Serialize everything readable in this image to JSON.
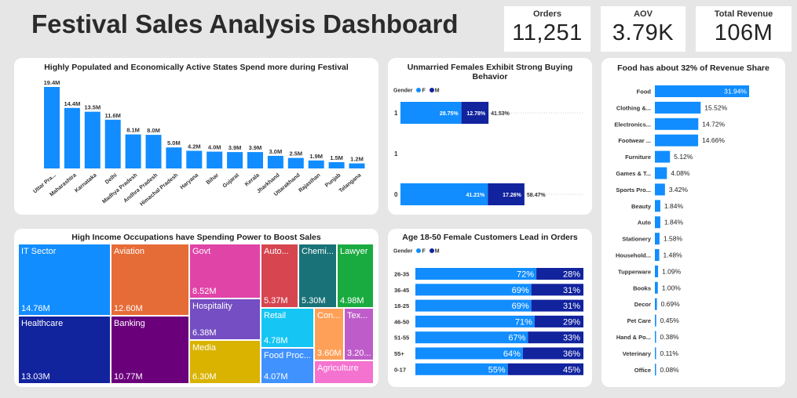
{
  "header": {
    "title": "Festival Sales Analysis Dashboard"
  },
  "kpis": [
    {
      "label": "Orders",
      "value": "11,251"
    },
    {
      "label": "AOV",
      "value": "3.79K"
    },
    {
      "label": "Total Revenue",
      "value": "106M"
    }
  ],
  "colors": {
    "primary": "#118dff",
    "secondary": "#12239e"
  },
  "chart_data": [
    {
      "type": "bar",
      "title": "Highly Populated and Economically Active States Spend more during Festival",
      "categories": [
        "Uttar Pra...",
        "Maharashtra",
        "Karnataka",
        "Delhi",
        "Madhya Pradesh",
        "Andhra Pradesh",
        "Himachal Pradesh",
        "Haryana",
        "Bihar",
        "Gujarat",
        "Kerala",
        "Jharkhand",
        "Uttarakhand",
        "Rajasthan",
        "Punjab",
        "Telangana"
      ],
      "values": [
        19.4,
        14.4,
        13.5,
        11.6,
        8.1,
        8.0,
        5.0,
        4.2,
        4.0,
        3.9,
        3.9,
        3.0,
        2.5,
        1.9,
        1.5,
        1.2
      ],
      "labels": [
        "19.4M",
        "14.4M",
        "13.5M",
        "11.6M",
        "8.1M",
        "8.0M",
        "5.0M",
        "4.2M",
        "4.0M",
        "3.9M",
        "3.9M",
        "3.0M",
        "2.5M",
        "1.9M",
        "1.5M",
        "1.2M"
      ]
    },
    {
      "type": "bar",
      "title": "Unmarried Females Exhibit Strong Buying Behavior",
      "legend_title": "Gender",
      "legend": [
        "F",
        "M"
      ],
      "categories": [
        "1",
        "1",
        "0"
      ],
      "series": [
        {
          "name": "F",
          "values": [
            28.75,
            null,
            41.21
          ],
          "labels": [
            "28.75%",
            "",
            "41.21%"
          ]
        },
        {
          "name": "M",
          "values": [
            12.78,
            null,
            17.26
          ],
          "labels": [
            "12.78%",
            "",
            "17.26%"
          ]
        }
      ],
      "totals": [
        "41.53%",
        "",
        "58.47%"
      ]
    },
    {
      "type": "table",
      "title": "High Income Occupations have Spending Power to Boost Sales",
      "items": [
        {
          "name": "IT Sector",
          "value": "14.76M",
          "color": "#118dff"
        },
        {
          "name": "Healthcare",
          "value": "13.03M",
          "color": "#12239e"
        },
        {
          "name": "Aviation",
          "value": "12.60M",
          "color": "#e66c37"
        },
        {
          "name": "Banking",
          "value": "10.77M",
          "color": "#6b007b"
        },
        {
          "name": "Govt",
          "value": "8.52M",
          "color": "#e044a7"
        },
        {
          "name": "Hospitality",
          "value": "6.38M",
          "color": "#744ec2"
        },
        {
          "name": "Media",
          "value": "6.30M",
          "color": "#d9b300"
        },
        {
          "name": "Auto...",
          "value": "5.37M",
          "color": "#d64550"
        },
        {
          "name": "Chemi...",
          "value": "5.30M",
          "color": "#197278"
        },
        {
          "name": "Lawyer",
          "value": "4.98M",
          "color": "#1aab40"
        },
        {
          "name": "Retail",
          "value": "4.78M",
          "color": "#15c6f4"
        },
        {
          "name": "Food Proc...",
          "value": "4.07M",
          "color": "#4092ff"
        },
        {
          "name": "Con...",
          "value": "3.60M",
          "color": "#ffa058"
        },
        {
          "name": "Tex...",
          "value": "3.20...",
          "color": "#be5dc9"
        },
        {
          "name": "Agriculture",
          "value": "",
          "color": "#f472d0"
        }
      ]
    },
    {
      "type": "bar",
      "title": "Age 18-50 Female Customers Lead in Orders",
      "legend_title": "Gender",
      "legend": [
        "F",
        "M"
      ],
      "categories": [
        "26-35",
        "36-45",
        "18-25",
        "46-50",
        "51-55",
        "55+",
        "0-17"
      ],
      "series": [
        {
          "name": "F",
          "values": [
            72,
            69,
            69,
            71,
            67,
            64,
            55
          ]
        },
        {
          "name": "M",
          "values": [
            28,
            31,
            31,
            29,
            33,
            36,
            45
          ]
        }
      ]
    },
    {
      "type": "bar",
      "title": "Food has about 32% of Revenue Share",
      "categories": [
        "Food",
        "Clothing &...",
        "Electronics...",
        "Footwear ...",
        "Furniture",
        "Games & T...",
        "Sports Pro...",
        "Beauty",
        "Auto",
        "Stationery",
        "Household...",
        "Tupperware",
        "Books",
        "Decor",
        "Pet Care",
        "Hand & Po...",
        "Veterinary",
        "Office"
      ],
      "values": [
        31.94,
        15.52,
        14.72,
        14.66,
        5.12,
        4.08,
        3.42,
        1.84,
        1.84,
        1.58,
        1.48,
        1.09,
        1.0,
        0.69,
        0.45,
        0.38,
        0.11,
        0.08
      ],
      "labels": [
        "31.94%",
        "15.52%",
        "14.72%",
        "14.66%",
        "5.12%",
        "4.08%",
        "3.42%",
        "1.84%",
        "1.84%",
        "1.58%",
        "1.48%",
        "1.09%",
        "1.00%",
        "0.69%",
        "0.45%",
        "0.38%",
        "0.11%",
        "0.08%"
      ]
    }
  ]
}
